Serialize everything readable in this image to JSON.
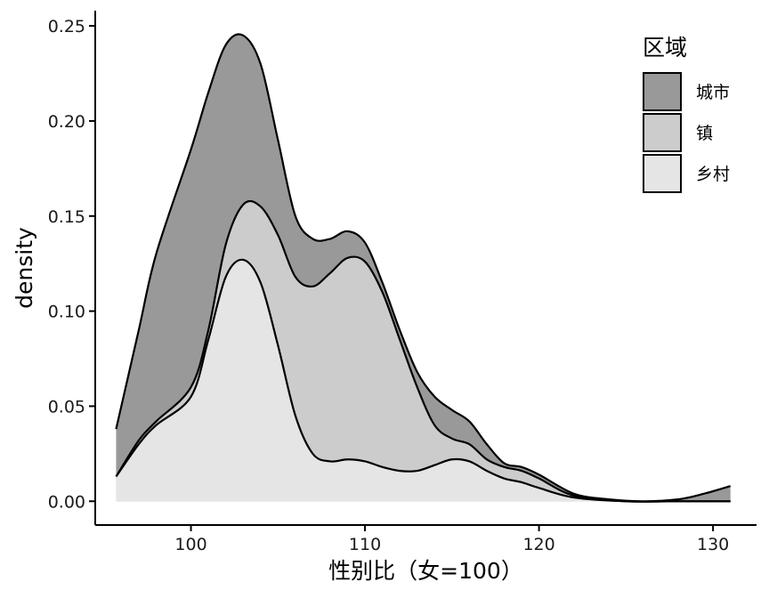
{
  "chart_data": {
    "type": "area",
    "stacked": true,
    "xlabel": "性别比（女=100）",
    "ylabel": "density",
    "xlim": [
      94.5,
      132.5
    ],
    "ylim": [
      -0.0125,
      0.258
    ],
    "x_ticks": [
      100,
      110,
      120,
      130
    ],
    "y_ticks": [
      0.0,
      0.05,
      0.1,
      0.15,
      0.2,
      0.25
    ],
    "y_tick_labels": [
      "0.00",
      "0.05",
      "0.10",
      "0.15",
      "0.20",
      "0.25"
    ],
    "grid": false,
    "legend": {
      "title": "区域",
      "position": "top-right",
      "items": [
        {
          "label": "城市",
          "color": "#999999"
        },
        {
          "label": "镇",
          "color": "#cccccc"
        },
        {
          "label": "乡村",
          "color": "#e5e5e5"
        }
      ]
    },
    "series": [
      {
        "name": "乡村",
        "fill": "#e5e5e5",
        "points": [
          [
            95.7,
            0.013
          ],
          [
            97,
            0.03
          ],
          [
            98,
            0.04
          ],
          [
            100,
            0.055
          ],
          [
            101,
            0.085
          ],
          [
            102,
            0.118
          ],
          [
            103,
            0.127
          ],
          [
            104,
            0.115
          ],
          [
            105,
            0.082
          ],
          [
            106,
            0.045
          ],
          [
            107,
            0.025
          ],
          [
            108,
            0.021
          ],
          [
            109,
            0.022
          ],
          [
            110,
            0.021
          ],
          [
            111,
            0.018
          ],
          [
            112,
            0.016
          ],
          [
            113,
            0.016
          ],
          [
            114,
            0.019
          ],
          [
            115,
            0.022
          ],
          [
            116,
            0.021
          ],
          [
            117,
            0.016
          ],
          [
            118,
            0.012
          ],
          [
            119,
            0.01
          ],
          [
            120,
            0.007
          ],
          [
            122,
            0.002
          ],
          [
            125,
            0.0
          ],
          [
            128,
            0.0
          ],
          [
            131,
            0.0
          ]
        ]
      },
      {
        "name": "镇",
        "fill": "#cccccc",
        "points": [
          [
            95.7,
            0.013
          ],
          [
            97,
            0.032
          ],
          [
            98,
            0.042
          ],
          [
            100,
            0.06
          ],
          [
            101,
            0.09
          ],
          [
            102,
            0.135
          ],
          [
            103,
            0.156
          ],
          [
            104,
            0.155
          ],
          [
            105,
            0.14
          ],
          [
            106,
            0.118
          ],
          [
            107,
            0.113
          ],
          [
            108,
            0.12
          ],
          [
            109,
            0.128
          ],
          [
            110,
            0.126
          ],
          [
            111,
            0.11
          ],
          [
            112,
            0.085
          ],
          [
            113,
            0.06
          ],
          [
            114,
            0.04
          ],
          [
            115,
            0.033
          ],
          [
            116,
            0.03
          ],
          [
            117,
            0.022
          ],
          [
            118,
            0.018
          ],
          [
            119,
            0.016
          ],
          [
            120,
            0.012
          ],
          [
            122,
            0.003
          ],
          [
            125,
            0.0
          ],
          [
            128,
            0.0
          ],
          [
            131,
            0.0
          ]
        ]
      },
      {
        "name": "城市",
        "fill": "#999999",
        "points": [
          [
            95.7,
            0.038
          ],
          [
            97,
            0.09
          ],
          [
            98,
            0.13
          ],
          [
            100,
            0.185
          ],
          [
            101,
            0.215
          ],
          [
            102,
            0.24
          ],
          [
            103,
            0.245
          ],
          [
            104,
            0.23
          ],
          [
            105,
            0.19
          ],
          [
            106,
            0.15
          ],
          [
            107,
            0.138
          ],
          [
            108,
            0.138
          ],
          [
            109,
            0.142
          ],
          [
            110,
            0.136
          ],
          [
            111,
            0.115
          ],
          [
            112,
            0.09
          ],
          [
            113,
            0.068
          ],
          [
            114,
            0.055
          ],
          [
            115,
            0.048
          ],
          [
            116,
            0.042
          ],
          [
            117,
            0.03
          ],
          [
            118,
            0.02
          ],
          [
            119,
            0.018
          ],
          [
            120,
            0.014
          ],
          [
            122,
            0.004
          ],
          [
            124,
            0.001
          ],
          [
            126,
            0.0
          ],
          [
            128,
            0.001
          ],
          [
            129.5,
            0.004
          ],
          [
            131,
            0.008
          ]
        ]
      }
    ]
  }
}
